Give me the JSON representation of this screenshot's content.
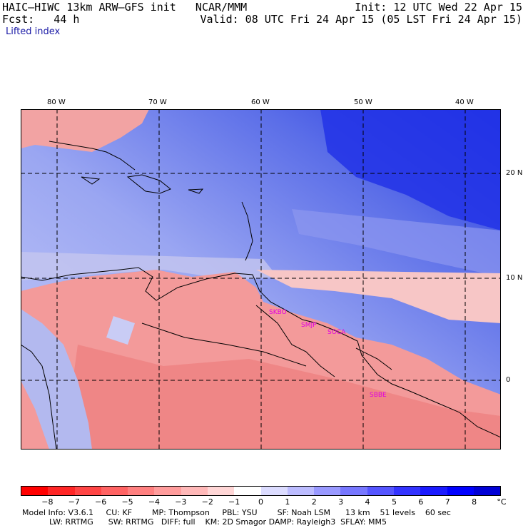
{
  "header": {
    "model_line": "HAIC–HIWC 13km ARW–GFS init   NCAR/MMM",
    "forecast_line": "Fcst:   44 h",
    "init_line": "Init: 12 UTC Wed 22 Apr 15",
    "valid_line": "Valid: 08 UTC Fri 24 Apr 15 (05 LST Fri 24 Apr 15)",
    "field_name": "Lifted index"
  },
  "map": {
    "lon_labels": [
      "80 W",
      "70 W",
      "60 W",
      "50 W",
      "40 W"
    ],
    "lat_labels": [
      "20 N",
      "10 N",
      "0"
    ],
    "stations": [
      "SKBO",
      "SMJP",
      "SOCA",
      "SBBE"
    ],
    "station_color": "#e000e0",
    "grid_style": "dashed",
    "colors": {
      "land_outline": "#000000",
      "ocean_positive": "#5b6ee8",
      "land_negative": "#f08a8a"
    }
  },
  "colorbar": {
    "unit": "°C",
    "tick_labels": [
      "−8",
      "−7",
      "−6",
      "−5",
      "−4",
      "−3",
      "−2",
      "−1",
      "0",
      "1",
      "2",
      "3",
      "4",
      "5",
      "6",
      "7",
      "8"
    ],
    "colors": [
      "#ff0000",
      "#ff2626",
      "#ff4545",
      "#ff6363",
      "#ff8080",
      "#ff9c9c",
      "#ffb8b8",
      "#ffd6d6",
      "#ffffff",
      "#dcdcff",
      "#bcbcff",
      "#9999ff",
      "#7777ff",
      "#5555ff",
      "#3333ff",
      "#1a1aff",
      "#0000ff",
      "#0000d6"
    ]
  },
  "footer": {
    "line1": "Model Info: V3.6.1     CU: KF        MP: Thompson     PBL: YSU        SF: Noah LSM      13 km    51 levels    60 sec",
    "line2": "LW: RRTMG      SW: RRTMG   DIFF: full    KM: 2D Smagor DAMP: Rayleigh3  SFLAY: MM5"
  }
}
